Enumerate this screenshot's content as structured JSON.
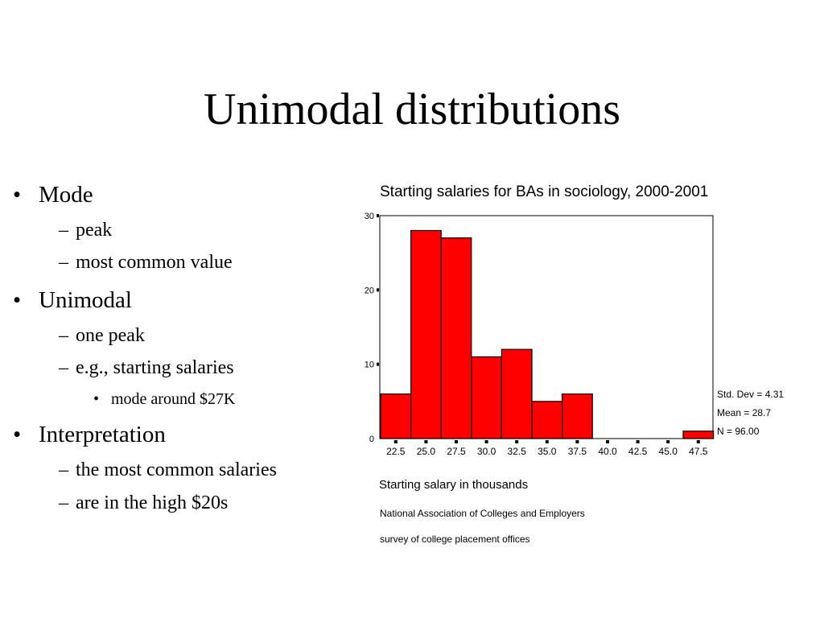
{
  "slide": {
    "title": "Unimodal distributions",
    "bullets": [
      {
        "level": 1,
        "text": "Mode"
      },
      {
        "level": 2,
        "text": "peak"
      },
      {
        "level": 2,
        "text": "most common value"
      },
      {
        "level": 1,
        "text": "Unimodal"
      },
      {
        "level": 2,
        "text": "one peak"
      },
      {
        "level": 2,
        "text": "e.g., starting salaries"
      },
      {
        "level": 3,
        "text": "mode around $27K"
      },
      {
        "level": 1,
        "text": "Interpretation"
      },
      {
        "level": 2,
        "text": "the most common salaries"
      },
      {
        "level": 2,
        "text": "are in the high $20s"
      }
    ],
    "markers": {
      "level1": "•",
      "level2": "–",
      "level3": "•"
    }
  },
  "chart_data": {
    "type": "bar",
    "title": "Starting salaries for BAs in sociology, 2000-2001",
    "xlabel": "Starting salary in thousands",
    "ylabel": "",
    "categories": [
      "22.5",
      "25.0",
      "27.5",
      "30.0",
      "32.5",
      "35.0",
      "37.5",
      "40.0",
      "42.5",
      "45.0",
      "47.5"
    ],
    "values": [
      6,
      28,
      27,
      11,
      12,
      5,
      6,
      0,
      0,
      0,
      1
    ],
    "yticks": [
      "0",
      "10",
      "20",
      "30"
    ],
    "ylim": [
      0,
      30
    ],
    "grid": false,
    "bar_color": "#ff0000",
    "stats": {
      "std_dev": "Std. Dev = 4.31",
      "mean": "Mean = 28.7",
      "n": "N = 96.00"
    },
    "source_lines": [
      "National Association of Colleges and Employers",
      "survey of college placement offices"
    ]
  }
}
